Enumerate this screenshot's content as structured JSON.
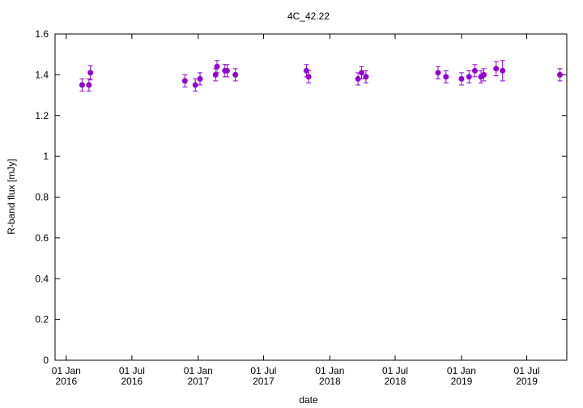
{
  "chart_data": {
    "type": "scatter",
    "title": "4C_42.22",
    "xlabel": "date",
    "ylabel": "R-band flux [mJy]",
    "ylim": [
      0,
      1.6
    ],
    "xlim": [
      "2015-12-01",
      "2019-10-20"
    ],
    "x_is_date": true,
    "grid": false,
    "legend": "none",
    "error_bars": true,
    "marker_color": "#9400d3",
    "x_ticks": [
      {
        "date": "2016-01-01",
        "line1": "01 Jan",
        "line2": "2016"
      },
      {
        "date": "2016-07-01",
        "line1": "01 Jul",
        "line2": "2016"
      },
      {
        "date": "2017-01-01",
        "line1": "01 Jan",
        "line2": "2017"
      },
      {
        "date": "2017-07-01",
        "line1": "01 Jul",
        "line2": "2017"
      },
      {
        "date": "2018-01-01",
        "line1": "01 Jan",
        "line2": "2018"
      },
      {
        "date": "2018-07-01",
        "line1": "01 Jul",
        "line2": "2018"
      },
      {
        "date": "2019-01-01",
        "line1": "01 Jan",
        "line2": "2019"
      },
      {
        "date": "2019-07-01",
        "line1": "01 Jul",
        "line2": "2019"
      }
    ],
    "y_ticks": [
      {
        "value": 0,
        "label": "0"
      },
      {
        "value": 0.2,
        "label": "0.2"
      },
      {
        "value": 0.4,
        "label": "0.4"
      },
      {
        "value": 0.6,
        "label": "0.6"
      },
      {
        "value": 0.8,
        "label": "0.8"
      },
      {
        "value": 1.0,
        "label": "1"
      },
      {
        "value": 1.2,
        "label": "1.2"
      },
      {
        "value": 1.4,
        "label": "1.4"
      },
      {
        "value": 1.6,
        "label": "1.6"
      }
    ],
    "points": [
      {
        "x": "2016-02-14",
        "y": 1.35,
        "err": 0.03
      },
      {
        "x": "2016-03-04",
        "y": 1.35,
        "err": 0.03
      },
      {
        "x": "2016-03-08",
        "y": 1.41,
        "err": 0.035
      },
      {
        "x": "2016-11-25",
        "y": 1.37,
        "err": 0.03
      },
      {
        "x": "2016-12-24",
        "y": 1.35,
        "err": 0.03
      },
      {
        "x": "2017-01-06",
        "y": 1.38,
        "err": 0.03
      },
      {
        "x": "2017-02-18",
        "y": 1.4,
        "err": 0.03
      },
      {
        "x": "2017-02-22",
        "y": 1.44,
        "err": 0.03
      },
      {
        "x": "2017-03-16",
        "y": 1.42,
        "err": 0.03
      },
      {
        "x": "2017-03-22",
        "y": 1.42,
        "err": 0.03
      },
      {
        "x": "2017-04-14",
        "y": 1.4,
        "err": 0.03
      },
      {
        "x": "2017-10-28",
        "y": 1.42,
        "err": 0.03
      },
      {
        "x": "2017-11-03",
        "y": 1.39,
        "err": 0.03
      },
      {
        "x": "2018-03-20",
        "y": 1.38,
        "err": 0.03
      },
      {
        "x": "2018-03-30",
        "y": 1.41,
        "err": 0.03
      },
      {
        "x": "2018-04-11",
        "y": 1.39,
        "err": 0.03
      },
      {
        "x": "2018-10-28",
        "y": 1.41,
        "err": 0.03
      },
      {
        "x": "2018-11-19",
        "y": 1.39,
        "err": 0.03
      },
      {
        "x": "2019-01-01",
        "y": 1.38,
        "err": 0.03
      },
      {
        "x": "2019-01-22",
        "y": 1.39,
        "err": 0.03
      },
      {
        "x": "2019-02-07",
        "y": 1.42,
        "err": 0.03
      },
      {
        "x": "2019-02-24",
        "y": 1.39,
        "err": 0.03
      },
      {
        "x": "2019-03-04",
        "y": 1.4,
        "err": 0.03
      },
      {
        "x": "2019-04-07",
        "y": 1.43,
        "err": 0.035
      },
      {
        "x": "2019-04-25",
        "y": 1.42,
        "err": 0.05
      },
      {
        "x": "2019-10-01",
        "y": 1.4,
        "err": 0.03
      }
    ]
  }
}
